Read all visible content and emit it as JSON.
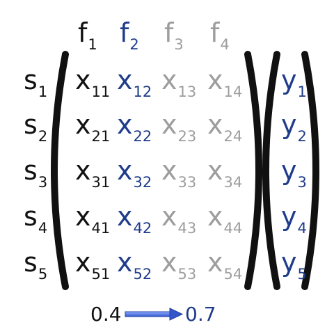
{
  "colors": {
    "black": "#111111",
    "blue": "#1f3c8a",
    "gray": "#9d9d9d",
    "arrow": "#4a6fd8"
  },
  "features": [
    {
      "base": "f",
      "sub": "1",
      "tone": "black"
    },
    {
      "base": "f",
      "sub": "2",
      "tone": "blue"
    },
    {
      "base": "f",
      "sub": "3",
      "tone": "gray"
    },
    {
      "base": "f",
      "sub": "4",
      "tone": "gray"
    }
  ],
  "samples": [
    {
      "base": "s",
      "sub": "1"
    },
    {
      "base": "s",
      "sub": "2"
    },
    {
      "base": "s",
      "sub": "3"
    },
    {
      "base": "s",
      "sub": "4"
    },
    {
      "base": "s",
      "sub": "5"
    }
  ],
  "matrix": [
    [
      {
        "base": "x",
        "sub": "11",
        "tone": "black"
      },
      {
        "base": "x",
        "sub": "12",
        "tone": "blue"
      },
      {
        "base": "x",
        "sub": "13",
        "tone": "gray"
      },
      {
        "base": "x",
        "sub": "14",
        "tone": "gray"
      }
    ],
    [
      {
        "base": "x",
        "sub": "21",
        "tone": "black"
      },
      {
        "base": "x",
        "sub": "22",
        "tone": "blue"
      },
      {
        "base": "x",
        "sub": "23",
        "tone": "gray"
      },
      {
        "base": "x",
        "sub": "24",
        "tone": "gray"
      }
    ],
    [
      {
        "base": "x",
        "sub": "31",
        "tone": "black"
      },
      {
        "base": "x",
        "sub": "32",
        "tone": "blue"
      },
      {
        "base": "x",
        "sub": "33",
        "tone": "gray"
      },
      {
        "base": "x",
        "sub": "34",
        "tone": "gray"
      }
    ],
    [
      {
        "base": "x",
        "sub": "41",
        "tone": "black"
      },
      {
        "base": "x",
        "sub": "42",
        "tone": "blue"
      },
      {
        "base": "x",
        "sub": "43",
        "tone": "gray"
      },
      {
        "base": "x",
        "sub": "44",
        "tone": "gray"
      }
    ],
    [
      {
        "base": "x",
        "sub": "51",
        "tone": "black"
      },
      {
        "base": "x",
        "sub": "52",
        "tone": "blue"
      },
      {
        "base": "x",
        "sub": "53",
        "tone": "gray"
      },
      {
        "base": "x",
        "sub": "54",
        "tone": "gray"
      }
    ]
  ],
  "targets": [
    {
      "base": "y",
      "sub": "1"
    },
    {
      "base": "y",
      "sub": "2"
    },
    {
      "base": "y",
      "sub": "3"
    },
    {
      "base": "y",
      "sub": "4"
    },
    {
      "base": "y",
      "sub": "5"
    }
  ],
  "arrow": {
    "from": "0.4",
    "to": "0.7"
  }
}
